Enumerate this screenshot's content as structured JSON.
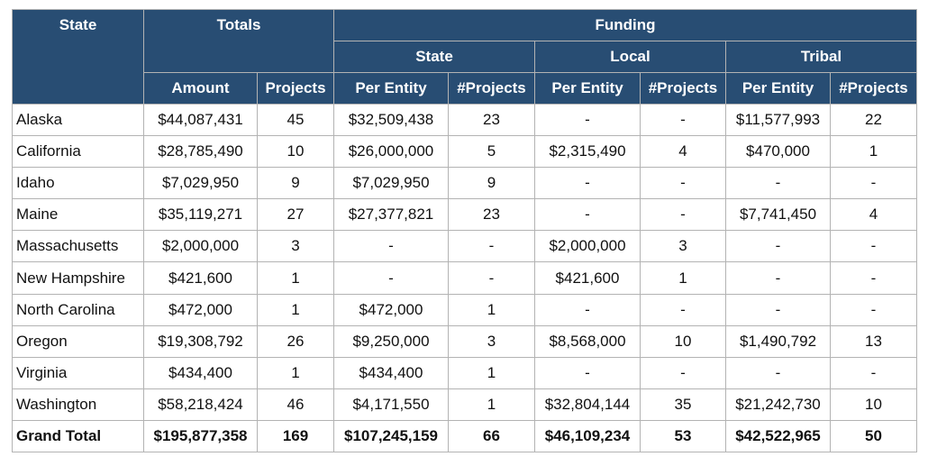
{
  "header": {
    "state": "State",
    "totals": "Totals",
    "funding": "Funding",
    "state_group": "State",
    "local_group": "Local",
    "tribal_group": "Tribal",
    "columns": [
      "Amount",
      "Projects",
      "Per Entity",
      "#Projects",
      "Per Entity",
      "#Projects",
      "Per Entity",
      "#Projects"
    ]
  },
  "rows": [
    [
      "Alaska",
      "$44,087,431",
      "45",
      "$32,509,438",
      "23",
      "-",
      "-",
      "$11,577,993",
      "22"
    ],
    [
      "California",
      "$28,785,490",
      "10",
      "$26,000,000",
      "5",
      "$2,315,490",
      "4",
      "$470,000",
      "1"
    ],
    [
      "Idaho",
      "$7,029,950",
      "9",
      "$7,029,950",
      "9",
      "-",
      "-",
      "-",
      "-"
    ],
    [
      "Maine",
      "$35,119,271",
      "27",
      "$27,377,821",
      "23",
      "-",
      "-",
      "$7,741,450",
      "4"
    ],
    [
      "Massachusetts",
      "$2,000,000",
      "3",
      "-",
      "-",
      "$2,000,000",
      "3",
      "-",
      "-"
    ],
    [
      "New Hampshire",
      "$421,600",
      "1",
      "-",
      "-",
      "$421,600",
      "1",
      "-",
      "-"
    ],
    [
      "North Carolina",
      "$472,000",
      "1",
      "$472,000",
      "1",
      "-",
      "-",
      "-",
      "-"
    ],
    [
      "Oregon",
      "$19,308,792",
      "26",
      "$9,250,000",
      "3",
      "$8,568,000",
      "10",
      "$1,490,792",
      "13"
    ],
    [
      "Virginia",
      "$434,400",
      "1",
      "$434,400",
      "1",
      "-",
      "-",
      "-",
      "-"
    ],
    [
      "Washington",
      "$58,218,424",
      "46",
      "$4,171,550",
      "1",
      "$32,804,144",
      "35",
      "$21,242,730",
      "10"
    ]
  ],
  "grand_total": [
    "Grand Total",
    "$195,877,358",
    "169",
    "$107,245,159",
    "66",
    "$46,109,234",
    "53",
    "$42,522,965",
    "50"
  ],
  "colors": {
    "header_bg": "#284d73",
    "header_text": "#ffffff",
    "border": "#b3b3b3"
  }
}
